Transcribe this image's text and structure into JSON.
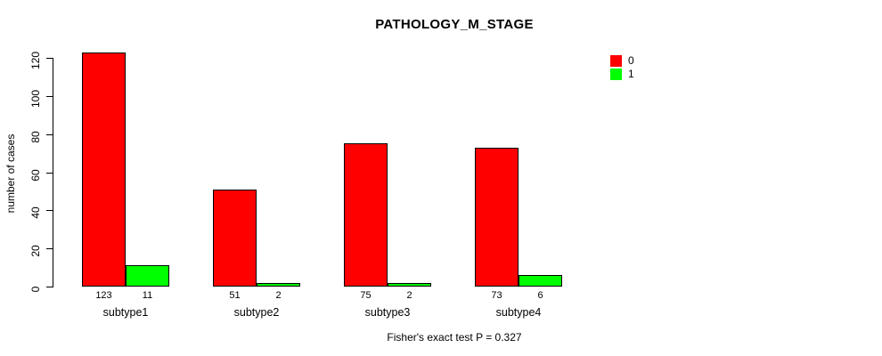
{
  "chart_data": {
    "type": "bar",
    "title": "PATHOLOGY_M_STAGE",
    "xlabel": "",
    "ylabel": "number of cases",
    "categories": [
      "subtype1",
      "subtype2",
      "subtype3",
      "subtype4"
    ],
    "series": [
      {
        "name": "0",
        "color": "#FF0000",
        "values": [
          123,
          51,
          75,
          73
        ]
      },
      {
        "name": "1",
        "color": "#00FF00",
        "values": [
          11,
          2,
          2,
          6
        ]
      }
    ],
    "bar_value_labels": [
      [
        "123",
        "11"
      ],
      [
        "51",
        "2"
      ],
      [
        "75",
        "2"
      ],
      [
        "73",
        "6"
      ]
    ],
    "ylim": [
      0,
      120
    ],
    "yticks": [
      0,
      20,
      40,
      60,
      80,
      100,
      120
    ],
    "grid": false,
    "legend_position": "top-right",
    "annotation": "Fisher's exact test P = 0.327"
  }
}
